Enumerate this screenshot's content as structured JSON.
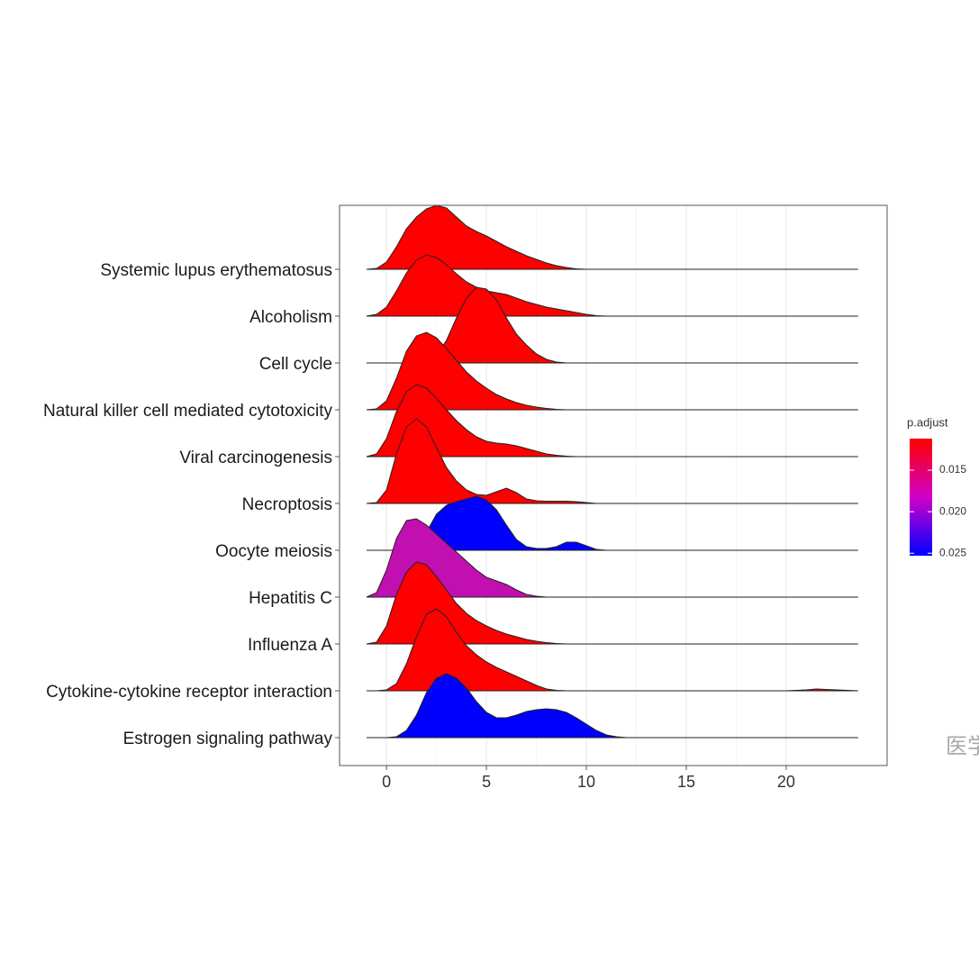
{
  "chart_data": {
    "type": "ridgeline",
    "categories": [
      "Systemic lupus erythematosus",
      "Alcoholism",
      "Cell cycle",
      "Natural killer cell mediated cytotoxicity",
      "Viral carcinogenesis",
      "Necroptosis",
      "Oocyte meiosis",
      "Hepatitis C",
      "Influenza A",
      "Cytokine-cytokine receptor interaction",
      "Estrogen signaling pathway"
    ],
    "x": [
      -1,
      -0.5,
      0,
      0.5,
      1,
      1.5,
      2,
      2.5,
      3,
      3.5,
      4,
      4.5,
      5,
      5.5,
      6,
      6.5,
      7,
      7.5,
      8,
      8.5,
      9,
      9.5,
      10,
      10.5,
      11,
      11.5,
      12,
      16,
      20,
      21,
      21.5,
      22,
      23.6
    ],
    "series": [
      {
        "color": "#ff0000",
        "values": [
          0,
          1,
          8,
          25,
          45,
          58,
          67,
          71,
          68,
          58,
          48,
          42,
          37,
          31,
          25,
          20,
          15,
          11,
          7,
          4,
          2,
          0.5,
          0,
          0,
          0,
          0,
          0,
          0,
          0,
          0,
          0,
          0,
          0
        ]
      },
      {
        "color": "#ff0000",
        "values": [
          0,
          2,
          10,
          28,
          48,
          62,
          68,
          65,
          57,
          47,
          38,
          32,
          28,
          26,
          24,
          20,
          16,
          13,
          10,
          8,
          6,
          4,
          2,
          0.5,
          0,
          0,
          0,
          0,
          0,
          0,
          0,
          0,
          0
        ]
      },
      {
        "color": "#ff0000",
        "values": [
          0,
          0,
          0,
          0,
          0,
          0.5,
          2,
          8,
          25,
          50,
          72,
          84,
          82,
          70,
          50,
          32,
          20,
          10,
          4,
          1,
          0,
          0,
          0,
          0,
          0,
          0,
          0,
          0,
          0,
          0,
          0,
          0,
          0
        ]
      },
      {
        "color": "#ff0000",
        "values": [
          0,
          1,
          10,
          35,
          65,
          82,
          86,
          80,
          68,
          55,
          42,
          32,
          24,
          17,
          12,
          8,
          5,
          3,
          1.5,
          0.5,
          0,
          0,
          0,
          0,
          0,
          0,
          0,
          0,
          0,
          0,
          0,
          0,
          0
        ]
      },
      {
        "color": "#ff0000",
        "values": [
          0,
          3,
          20,
          50,
          72,
          80,
          76,
          65,
          52,
          40,
          30,
          22,
          17,
          15,
          14,
          12,
          9,
          6,
          3,
          1.5,
          0.5,
          0,
          0,
          0,
          0,
          0,
          0,
          0,
          0,
          0,
          0,
          0,
          0
        ]
      },
      {
        "color": "#ff0000",
        "values": [
          0,
          1,
          15,
          55,
          85,
          94,
          85,
          62,
          40,
          25,
          15,
          10,
          9,
          13,
          17,
          12,
          5,
          3,
          2.5,
          2.5,
          2.5,
          2,
          1,
          0,
          0,
          0,
          0,
          0,
          0,
          0,
          0,
          0,
          0
        ]
      },
      {
        "color": "#0000ff",
        "values": [
          0,
          0,
          0,
          0,
          0,
          2,
          20,
          40,
          50,
          54,
          57,
          60,
          56,
          45,
          28,
          12,
          4,
          2,
          2,
          4,
          9,
          9,
          5,
          1,
          0,
          0,
          0,
          0,
          0,
          0,
          0,
          0,
          0
        ]
      },
      {
        "color": "#c10fb0",
        "values": [
          0,
          5,
          30,
          65,
          85,
          87,
          80,
          70,
          60,
          50,
          40,
          30,
          22,
          18,
          14,
          8,
          3,
          1,
          0,
          0,
          0,
          0,
          0,
          0,
          0,
          0,
          0,
          0,
          0,
          0,
          0,
          0,
          0
        ]
      },
      {
        "color": "#ff0000",
        "values": [
          0,
          2,
          20,
          55,
          80,
          91,
          88,
          75,
          60,
          45,
          34,
          26,
          20,
          15,
          11,
          8,
          5,
          3,
          1.5,
          0.5,
          0,
          0,
          0,
          0,
          0,
          0,
          0,
          0,
          0,
          0,
          0,
          0,
          0
        ]
      },
      {
        "color": "#ff0000",
        "values": [
          0,
          0,
          1,
          8,
          30,
          60,
          85,
          91,
          82,
          65,
          50,
          40,
          32,
          26,
          21,
          16,
          11,
          6,
          2,
          0.5,
          0,
          0,
          0,
          0,
          0,
          0,
          0,
          0,
          0,
          1,
          2,
          1.5,
          0
        ]
      },
      {
        "color": "#0000ff",
        "values": [
          0,
          0,
          0,
          1,
          8,
          25,
          50,
          66,
          71,
          66,
          55,
          40,
          28,
          22,
          22,
          25,
          29,
          31,
          32,
          31,
          28,
          22,
          15,
          8,
          3,
          1,
          0,
          0,
          0,
          0,
          0,
          0,
          0
        ]
      }
    ],
    "xlim": [
      -2.35,
      25.05
    ],
    "xticks": [
      0,
      5,
      10,
      15,
      20
    ],
    "grid": true,
    "legend": {
      "title": "p.adjust",
      "lim": [
        0.0112,
        0.0253
      ],
      "ticks": [
        0.015,
        {
          "value": 0.02,
          "label": "0.020"
        },
        0.025
      ],
      "colors": [
        "#ff0000",
        "#d000c8",
        "#0000ff"
      ]
    },
    "watermark": "医学方"
  }
}
